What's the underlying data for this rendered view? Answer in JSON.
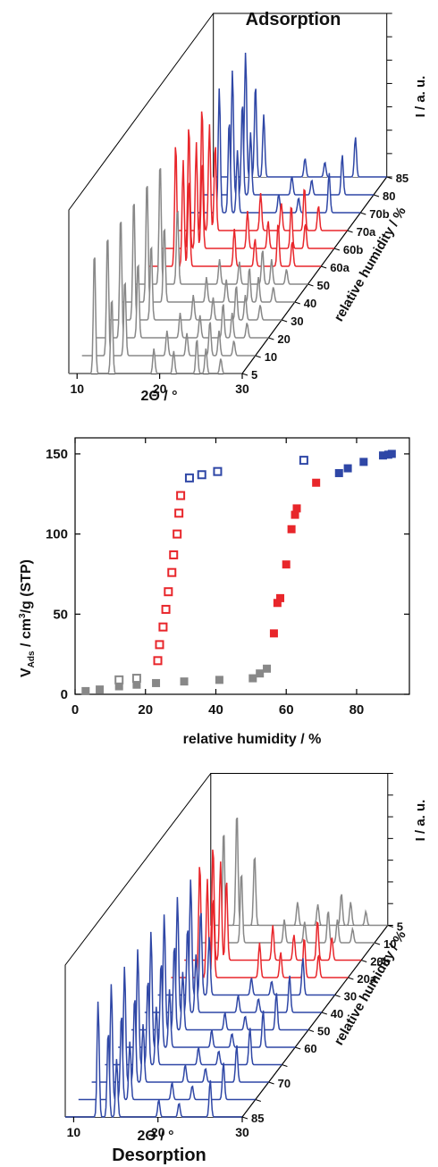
{
  "colors": {
    "gray": "#888888",
    "red": "#e8262b",
    "blue": "#2f47a6",
    "axis": "#000000"
  },
  "chart_data": [
    {
      "type": "line",
      "subtype": "3d-waterfall",
      "title": "Adsorption",
      "xlabel": "2Θ / °",
      "ylabel": "relative humidity / %",
      "zlabel": "I / a. u.",
      "xlim": [
        9,
        30
      ],
      "xticks": [
        "10",
        "20",
        "30"
      ],
      "series": [
        {
          "name": "5",
          "color": "gray"
        },
        {
          "name": "10",
          "color": "gray"
        },
        {
          "name": "20",
          "color": "gray"
        },
        {
          "name": "30",
          "color": "gray"
        },
        {
          "name": "40",
          "color": "gray"
        },
        {
          "name": "50",
          "color": "gray"
        },
        {
          "name": "60a",
          "color": "red"
        },
        {
          "name": "60b",
          "color": "red"
        },
        {
          "name": "70a",
          "color": "red"
        },
        {
          "name": "70b",
          "color": "blue"
        },
        {
          "name": "80",
          "color": "blue"
        },
        {
          "name": "85",
          "color": "blue"
        }
      ],
      "peaks_gray": [
        {
          "x": 12.1,
          "h": 1.0
        },
        {
          "x": 14.2,
          "h": 0.62
        },
        {
          "x": 19.3,
          "h": 0.2
        },
        {
          "x": 21.7,
          "h": 0.18
        },
        {
          "x": 24.5,
          "h": 0.28
        },
        {
          "x": 25.6,
          "h": 0.2
        },
        {
          "x": 27.4,
          "h": 0.12
        }
      ],
      "peaks_red": [
        {
          "x": 12.4,
          "h": 1.0
        },
        {
          "x": 13.3,
          "h": 0.85
        },
        {
          "x": 14.0,
          "h": 0.7
        },
        {
          "x": 19.5,
          "h": 0.3
        },
        {
          "x": 22.0,
          "h": 0.22
        },
        {
          "x": 24.8,
          "h": 0.35
        },
        {
          "x": 26.5,
          "h": 0.2
        }
      ],
      "peaks_blue": [
        {
          "x": 12.9,
          "h": 1.0
        },
        {
          "x": 14.1,
          "h": 0.75
        },
        {
          "x": 15.1,
          "h": 0.5
        },
        {
          "x": 20.1,
          "h": 0.15
        },
        {
          "x": 22.5,
          "h": 0.12
        },
        {
          "x": 26.2,
          "h": 0.32
        }
      ]
    },
    {
      "type": "scatter",
      "xlabel": "relative humidity / %",
      "ylabel_main": "V",
      "ylabel_sub": "Ads",
      "ylabel_rest": " / cm",
      "ylabel_sup": "3",
      "ylabel_tail": "/g (STP)",
      "xlim": [
        0,
        95
      ],
      "ylim": [
        0,
        160
      ],
      "xticks": [
        0,
        20,
        40,
        60,
        80
      ],
      "yticks": [
        0,
        50,
        100,
        150
      ],
      "series": [
        {
          "role": "adsorption",
          "color": "gray",
          "filled": true,
          "points": [
            [
              3,
              2
            ],
            [
              7,
              3
            ],
            [
              12.5,
              5
            ],
            [
              17.5,
              6
            ],
            [
              23,
              7
            ],
            [
              31,
              8
            ],
            [
              41,
              9
            ],
            [
              50.5,
              10
            ],
            [
              52.5,
              13
            ],
            [
              54.5,
              16
            ]
          ]
        },
        {
          "role": "adsorption",
          "color": "red",
          "filled": true,
          "points": [
            [
              56.5,
              38
            ],
            [
              57.5,
              57
            ],
            [
              58.3,
              60
            ],
            [
              60,
              81
            ],
            [
              61.5,
              103
            ],
            [
              62.5,
              112
            ],
            [
              63,
              116
            ],
            [
              68.5,
              132
            ]
          ]
        },
        {
          "role": "adsorption",
          "color": "blue",
          "filled": true,
          "points": [
            [
              75,
              138
            ],
            [
              77.5,
              141
            ],
            [
              82,
              145
            ],
            [
              87.5,
              149
            ],
            [
              89,
              149.5
            ],
            [
              90,
              150
            ]
          ]
        },
        {
          "role": "desorption",
          "color": "gray",
          "filled": false,
          "points": [
            [
              12.5,
              9
            ],
            [
              17.5,
              10
            ]
          ]
        },
        {
          "role": "desorption",
          "color": "red",
          "filled": false,
          "points": [
            [
              23.5,
              21
            ],
            [
              24,
              31
            ],
            [
              25,
              42
            ],
            [
              25.8,
              53
            ],
            [
              26.5,
              64
            ],
            [
              27.5,
              76
            ],
            [
              28,
              87
            ],
            [
              29,
              100
            ],
            [
              29.5,
              113
            ],
            [
              30,
              124
            ]
          ]
        },
        {
          "role": "desorption",
          "color": "blue",
          "filled": false,
          "points": [
            [
              32.5,
              135
            ],
            [
              36,
              137
            ],
            [
              40.5,
              139
            ],
            [
              65,
              146
            ]
          ]
        }
      ]
    },
    {
      "type": "line",
      "subtype": "3d-waterfall",
      "title": "Desorption",
      "xlabel": "2Θ / °",
      "ylabel": "relative humidity / %",
      "zlabel": "I / a. u.",
      "xlim": [
        9,
        30
      ],
      "xticks": [
        "10",
        "20",
        "30"
      ],
      "series": [
        {
          "name": "85",
          "color": "blue"
        },
        {
          "name": "",
          "color": "blue"
        },
        {
          "name": "70",
          "color": "blue"
        },
        {
          "name": "",
          "color": "blue"
        },
        {
          "name": "60",
          "color": "blue"
        },
        {
          "name": "50",
          "color": "blue"
        },
        {
          "name": "40",
          "color": "blue"
        },
        {
          "name": "30",
          "color": "blue"
        },
        {
          "name": "20a",
          "color": "red"
        },
        {
          "name": "20b",
          "color": "red"
        },
        {
          "name": "10",
          "color": "gray"
        },
        {
          "name": "5",
          "color": "gray"
        }
      ],
      "peaks_gray": [
        {
          "x": 12.1,
          "h": 1.0
        },
        {
          "x": 14.2,
          "h": 0.62
        },
        {
          "x": 19.3,
          "h": 0.2
        },
        {
          "x": 21.7,
          "h": 0.18
        },
        {
          "x": 24.5,
          "h": 0.28
        },
        {
          "x": 25.6,
          "h": 0.2
        },
        {
          "x": 27.4,
          "h": 0.12
        }
      ],
      "peaks_red": [
        {
          "x": 12.4,
          "h": 1.0
        },
        {
          "x": 13.3,
          "h": 0.85
        },
        {
          "x": 14.0,
          "h": 0.7
        },
        {
          "x": 19.5,
          "h": 0.3
        },
        {
          "x": 22.0,
          "h": 0.22
        },
        {
          "x": 24.8,
          "h": 0.35
        },
        {
          "x": 26.5,
          "h": 0.2
        }
      ],
      "peaks_blue": [
        {
          "x": 12.9,
          "h": 1.0
        },
        {
          "x": 14.1,
          "h": 0.75
        },
        {
          "x": 15.1,
          "h": 0.5
        },
        {
          "x": 20.1,
          "h": 0.15
        },
        {
          "x": 22.5,
          "h": 0.12
        },
        {
          "x": 26.2,
          "h": 0.32
        }
      ]
    }
  ]
}
